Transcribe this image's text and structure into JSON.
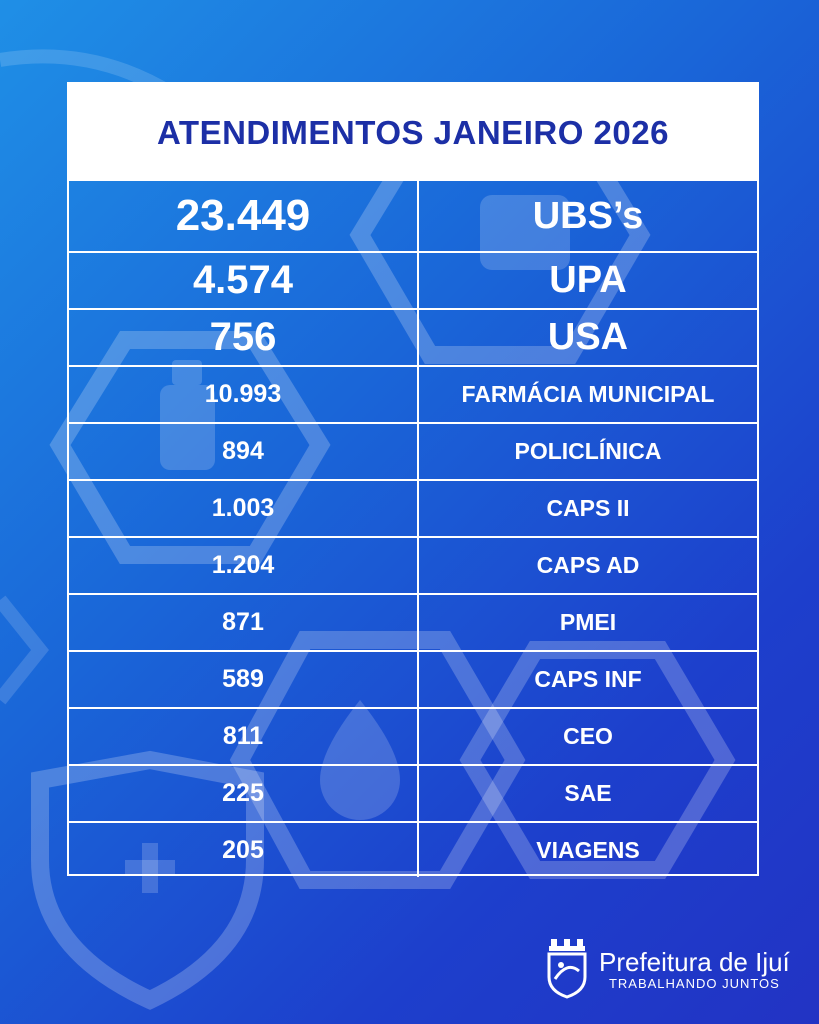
{
  "title": "ATENDIMENTOS JANEIRO 2026",
  "rows": [
    {
      "value": "23.449",
      "label": "UBS’s"
    },
    {
      "value": "4.574",
      "label": "UPA"
    },
    {
      "value": "756",
      "label": "USA"
    },
    {
      "value": "10.993",
      "label": "FARMÁCIA MUNICIPAL"
    },
    {
      "value": "894",
      "label": "POLICLÍNICA"
    },
    {
      "value": "1.003",
      "label": "CAPS II"
    },
    {
      "value": "1.204",
      "label": "CAPS AD"
    },
    {
      "value": "871",
      "label": "PMEI"
    },
    {
      "value": "589",
      "label": "CAPS INF"
    },
    {
      "value": "811",
      "label": "CEO"
    },
    {
      "value": "225",
      "label": "SAE"
    },
    {
      "value": "205",
      "label": "VIAGENS"
    }
  ],
  "logo": {
    "name": "Prefeitura de Ijuí",
    "slogan": "TRABALHANDO JUNTOS"
  },
  "colors": {
    "title": "#1c2fa6",
    "background_start": "#1f8fe6",
    "background_end": "#2233c4"
  },
  "icons": [
    "hexagon-shape",
    "medicine-bottle-icon",
    "shield-cross-icon",
    "drop-icon",
    "crest-icon"
  ]
}
